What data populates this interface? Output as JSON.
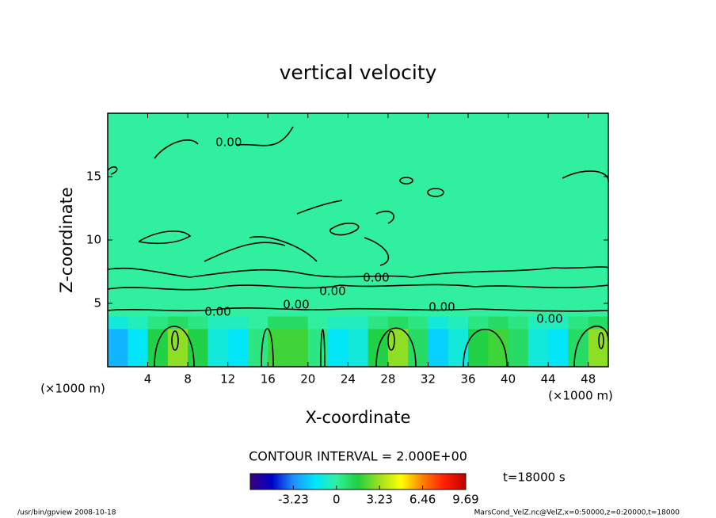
{
  "chart_data": {
    "type": "heatmap",
    "title": "vertical velocity",
    "x_label": "X-coordinate",
    "y_label": "Z-coordinate",
    "x_unit": "(×1000 m)",
    "y_unit": "(×1000 m)",
    "contour_interval": "CONTOUR INTERVAL = 2.000E+00",
    "time_label": "t=18000 s",
    "footer_left": "/usr/bin/gpview  2008-10-18",
    "footer_right": "MarsCond_VelZ.nc@VelZ,x=0:50000,z=0:20000,t=18000",
    "contour_labels": [
      "0.00",
      "0.00",
      "0.00",
      "0.00",
      "0.00",
      "0.00",
      "0.00"
    ],
    "xlim": [
      0,
      50
    ],
    "ylim": [
      0,
      20
    ],
    "xticks": [
      4,
      8,
      12,
      16,
      20,
      24,
      28,
      32,
      36,
      40,
      44,
      48
    ],
    "yticks": [
      5,
      10,
      15
    ],
    "x_edges": [
      0,
      2,
      4,
      6,
      8,
      10,
      12,
      14,
      16,
      18,
      20,
      22,
      24,
      26,
      28,
      30,
      32,
      34,
      36,
      38,
      40,
      42,
      44,
      46,
      48,
      50
    ],
    "z_edges": [
      0,
      3,
      4,
      20
    ],
    "values": [
      [
        -2.5,
        -1.5,
        1.5,
        3.0,
        1.5,
        -1.0,
        -1.5,
        0.5,
        2.0,
        2.0,
        0.5,
        -1.5,
        -1.0,
        1.5,
        3.0,
        1.0,
        -2.0,
        -1.0,
        1.5,
        2.0,
        1.0,
        -1.0,
        -1.5,
        1.0,
        3.0
      ],
      [
        -1.0,
        -0.5,
        0.5,
        1.0,
        0.5,
        -0.5,
        -0.5,
        0,
        1.0,
        1.0,
        0,
        -0.5,
        -0.5,
        0.5,
        1.0,
        0.5,
        -1.0,
        -0.5,
        0.5,
        1.0,
        0.5,
        -0.5,
        -0.5,
        0.5,
        1.0
      ],
      [
        0,
        0,
        0,
        0,
        0,
        0,
        0,
        0,
        0,
        0,
        0,
        0,
        0,
        0,
        0,
        0,
        0,
        0,
        0,
        0,
        0,
        0,
        0,
        0,
        0
      ]
    ],
    "colormap": [
      "#3b0080",
      "#0000c8",
      "#1e90ff",
      "#00e5ff",
      "#30f0a0",
      "#20d040",
      "#a0e020",
      "#ffff00",
      "#ff8000",
      "#ff2000",
      "#c00000"
    ],
    "clim": [
      -6.46,
      9.69
    ],
    "cticks": [
      -3.23,
      0,
      3.23,
      6.46,
      9.69
    ]
  }
}
